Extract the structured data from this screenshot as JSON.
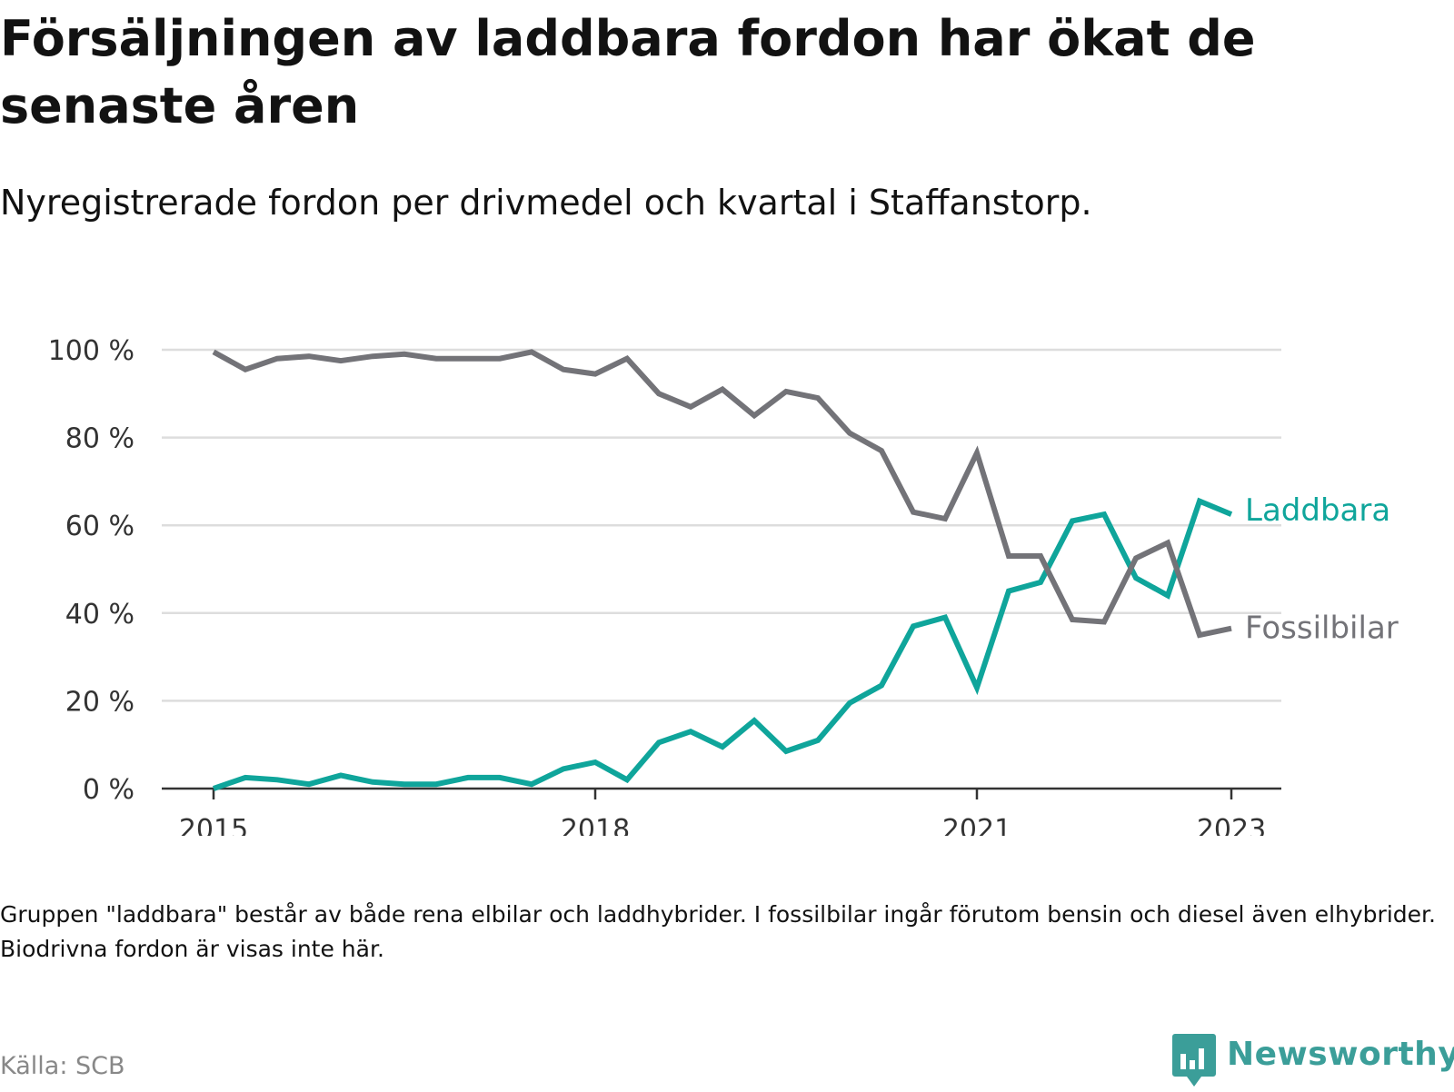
{
  "title": "Försäljningen av laddbara fordon har ökat de senaste åren",
  "subtitle": "Nyregistrerade fordon per drivmedel och kvartal i Staffanstorp.",
  "note": "Gruppen \"laddbara\" består av både rena elbilar och laddhybrider. I fossilbilar ingår förutom bensin och diesel även elhybrider. Biodrivna fordon är visas inte här.",
  "source": "Källa: SCB",
  "brand": {
    "name": "Newsworthy",
    "color": "#3b9e99",
    "icon": "bar-chart-speech-bubble-icon"
  },
  "chart_data": {
    "type": "line",
    "x_unit": "quarter",
    "y_unit": "%",
    "ylim": [
      0,
      100
    ],
    "yticks": [
      0,
      20,
      40,
      60,
      80,
      100
    ],
    "ytick_labels": [
      "0 %",
      "20 %",
      "40 %",
      "60 %",
      "80 %",
      "100 %"
    ],
    "xticks": [
      {
        "quarter": "2015-Q1",
        "label": "2015"
      },
      {
        "quarter": "2018-Q1",
        "label": "2018"
      },
      {
        "quarter": "2021-Q1",
        "label": "2021"
      },
      {
        "quarter": "2023-Q1",
        "label": "2023"
      }
    ],
    "grid": true,
    "legend": "direct labels at line ends",
    "categories": [
      "2015-Q1",
      "2015-Q2",
      "2015-Q3",
      "2015-Q4",
      "2016-Q1",
      "2016-Q2",
      "2016-Q3",
      "2016-Q4",
      "2017-Q1",
      "2017-Q2",
      "2017-Q3",
      "2017-Q4",
      "2018-Q1",
      "2018-Q2",
      "2018-Q3",
      "2018-Q4",
      "2019-Q1",
      "2019-Q2",
      "2019-Q3",
      "2019-Q4",
      "2020-Q1",
      "2020-Q2",
      "2020-Q3",
      "2020-Q4",
      "2021-Q1",
      "2021-Q2",
      "2021-Q3",
      "2021-Q4",
      "2022-Q1",
      "2022-Q2",
      "2022-Q3",
      "2022-Q4",
      "2023-Q1"
    ],
    "series": [
      {
        "name": "Laddbara",
        "color": "#0fa59b",
        "values": [
          0,
          2.5,
          2,
          1,
          3,
          1.5,
          1,
          1,
          2.5,
          2.5,
          1,
          4.5,
          6,
          2,
          10.5,
          13,
          9.5,
          15.5,
          8.5,
          11,
          19.5,
          23.5,
          37,
          39,
          23,
          45,
          47,
          61,
          62.5,
          48,
          44,
          65.5,
          62.5
        ]
      },
      {
        "name": "Fossilbilar",
        "color": "#737378",
        "values": [
          99.5,
          95.5,
          98,
          98.5,
          97.5,
          98.5,
          99,
          98,
          98,
          98,
          99.5,
          95.5,
          94.5,
          98,
          90,
          87,
          91,
          85,
          90.5,
          89,
          81,
          77,
          63,
          61.5,
          76.5,
          53,
          53,
          38.5,
          38,
          52.5,
          56,
          35,
          36.5
        ]
      }
    ]
  }
}
